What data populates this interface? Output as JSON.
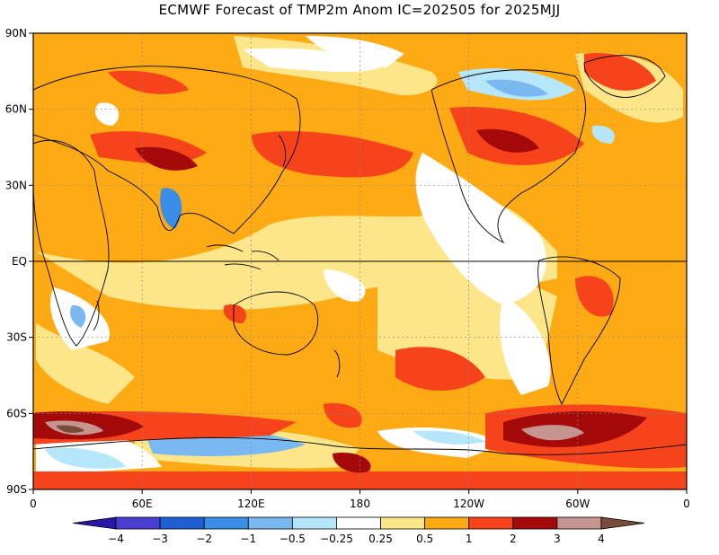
{
  "title": "ECMWF Forecast of TMP2m Anom IC=202505 for 2025MJJ",
  "map": {
    "lat_labels": [
      "90N",
      "60N",
      "30N",
      "EQ",
      "30S",
      "60S",
      "90S"
    ],
    "lat_values": [
      90,
      60,
      30,
      0,
      -30,
      -60,
      -90
    ],
    "lon_labels": [
      "0",
      "60E",
      "120E",
      "180",
      "120W",
      "60W",
      "0"
    ],
    "lon_values": [
      0,
      60,
      120,
      180,
      240,
      300,
      360
    ]
  },
  "colorbar": {
    "labels": [
      "−4",
      "−3",
      "−2",
      "−1",
      "−0.5",
      "−0.25",
      "0.25",
      "0.5",
      "1",
      "2",
      "3",
      "4"
    ],
    "colors": [
      "#2a16a6",
      "#4a3ed0",
      "#1f5fd1",
      "#3b8ee8",
      "#7ab8f2",
      "#b5e6f9",
      "#ffffff",
      "#fde58a",
      "#fdaa14",
      "#f7431b",
      "#a50a0a",
      "#c69590",
      "#7a4b3a"
    ]
  }
}
